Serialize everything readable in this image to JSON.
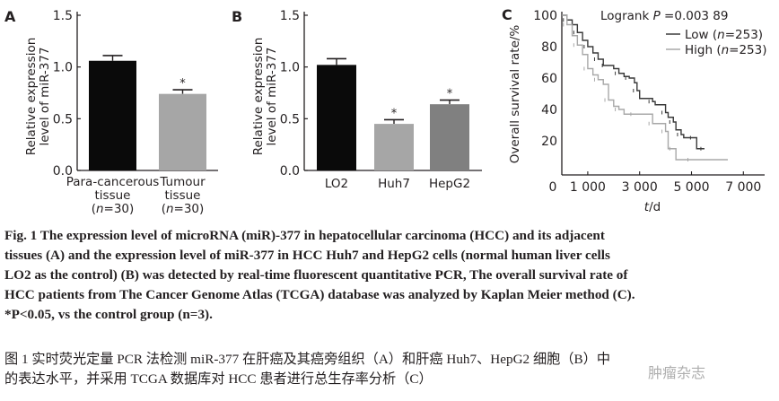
{
  "chart_data": [
    {
      "panel": "A",
      "type": "bar",
      "categories": [
        "Para-cancerous tissue (n=30)",
        "Tumour tissue (n=30)"
      ],
      "category_lines": [
        [
          "Para-cancerous",
          "tissue",
          "(n=30)"
        ],
        [
          "Tumour",
          "tissue",
          "(n=30)"
        ]
      ],
      "values": [
        1.06,
        0.74
      ],
      "errors": [
        0.05,
        0.04
      ],
      "significance": [
        "",
        "*"
      ],
      "colors": [
        "#0a0a0a",
        "#a6a6a6"
      ],
      "title": "",
      "xlabel": "",
      "ylabel": "Relative expression level of miR-377",
      "ylabel_lines": [
        "Relative expression",
        "level of miR-377"
      ],
      "ylim": [
        0,
        1.5
      ],
      "yticks": [
        "0.0",
        "0.5",
        "1.0",
        "1.5"
      ]
    },
    {
      "panel": "B",
      "type": "bar",
      "categories": [
        "LO2",
        "Huh7",
        "HepG2"
      ],
      "values": [
        1.02,
        0.45,
        0.64
      ],
      "errors": [
        0.06,
        0.04,
        0.04
      ],
      "significance": [
        "",
        "*",
        "*"
      ],
      "colors": [
        "#0a0a0a",
        "#a6a6a6",
        "#808080"
      ],
      "title": "",
      "xlabel": "",
      "ylabel": "Relative expression level of miR-377",
      "ylabel_lines": [
        "Relative expression",
        "level of miR-377"
      ],
      "ylim": [
        0,
        1.5
      ],
      "yticks": [
        "0.0",
        "0.5",
        "1.0",
        "1.5"
      ]
    },
    {
      "panel": "C",
      "type": "line",
      "subtype": "kaplan-meier",
      "annotation": "Logrank P =0.003 89",
      "xlabel": "t/d",
      "ylabel": "Overall survival rate/%",
      "xlim": [
        0,
        7500
      ],
      "ylim": [
        0,
        100
      ],
      "xticks": [
        "0",
        "1 000",
        "3 000",
        "5 000",
        "7 000"
      ],
      "xtick_values": [
        0,
        1000,
        3000,
        5000,
        7000
      ],
      "yticks": [
        "20",
        "40",
        "60",
        "80",
        "100"
      ],
      "ytick_values": [
        20,
        40,
        60,
        80,
        100
      ],
      "legend_position": "upper right",
      "series": [
        {
          "name": "Low (n=253)",
          "color": "#3a3a3a",
          "x": [
            0,
            200,
            400,
            600,
            800,
            1000,
            1200,
            1400,
            1600,
            1700,
            2000,
            2200,
            2400,
            2600,
            2800,
            2900,
            3000,
            3500,
            3600,
            4000,
            4100,
            4300,
            4400,
            4600,
            4700,
            5100,
            5200,
            5500
          ],
          "y": [
            100,
            97,
            94,
            89,
            84,
            80,
            76,
            72,
            68,
            68,
            66,
            63,
            61,
            60,
            57,
            52,
            47,
            45,
            43,
            38,
            35,
            32,
            27,
            24,
            22,
            22,
            15,
            15
          ]
        },
        {
          "name": "High (n=253)",
          "color": "#a8a8a8",
          "x": [
            0,
            200,
            400,
            600,
            800,
            1000,
            1200,
            1400,
            1600,
            1800,
            2000,
            2200,
            2400,
            2800,
            3300,
            3500,
            3800,
            4000,
            4100,
            4300,
            4400,
            5000,
            6400
          ],
          "y": [
            100,
            94,
            87,
            81,
            75,
            66,
            62,
            59,
            56,
            46,
            42,
            40,
            37,
            37,
            37,
            31,
            31,
            26,
            15,
            15,
            8,
            8,
            8
          ]
        }
      ]
    }
  ],
  "panels": {
    "a": {
      "label": "A"
    },
    "b": {
      "label": "B"
    },
    "c": {
      "label": "C",
      "annotation_prefix": "Logrank ",
      "annotation_p": "P",
      "annotation_value": " =0.003 89",
      "xlabel_t": "t",
      "xlabel_unit": "/d"
    }
  },
  "caption": {
    "en_lines": [
      "Fig. 1    The expression level of microRNA (miR)-377 in hepatocellular carcinoma (HCC) and its adjacent",
      "tissues (A) and the expression level of miR-377 in HCC Huh7 and HepG2 cells (normal human liver cells",
      "LO2 as the control) (B) was detected by real-time fluorescent quantitative PCR, The overall survival rate of",
      "HCC patients from The Cancer Genome Atlas (TCGA) database was analyzed by Kaplan Meier method (C).",
      "*P<0.05, vs the control group (n=3)."
    ],
    "zh_lines": [
      "图 1    实时荧光定量 PCR 法检测 miR-377 在肝癌及其癌旁组织（A）和肝癌 Huh7、HepG2 细胞（B）中",
      "的表达水平，并采用 TCGA 数据库对 HCC 患者进行总生存率分析（C）"
    ]
  },
  "watermark": {
    "text": "肿瘤杂志"
  }
}
